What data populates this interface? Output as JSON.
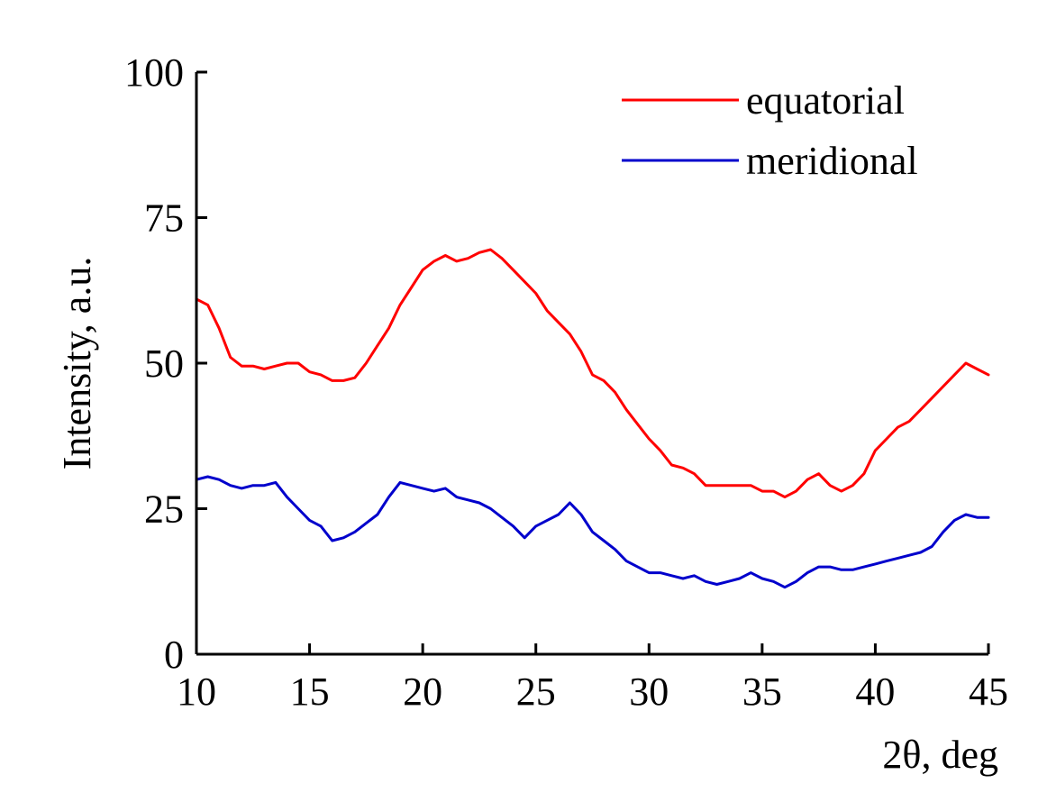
{
  "chart_data": {
    "type": "line",
    "title": "",
    "xlabel": "2θ, deg",
    "ylabel": "Intensity, a.u.",
    "xlim": [
      10,
      45
    ],
    "ylim": [
      0,
      100
    ],
    "x_ticks": [
      10,
      15,
      20,
      25,
      30,
      35,
      40,
      45
    ],
    "y_ticks": [
      0,
      25,
      50,
      75,
      100
    ],
    "grid": false,
    "legend_position": "top-right",
    "series": [
      {
        "name": "equatorial",
        "color": "#ff0000",
        "x": [
          10,
          10.5,
          11,
          11.5,
          12,
          12.5,
          13,
          13.5,
          14,
          14.5,
          15,
          15.5,
          16,
          16.5,
          17,
          17.5,
          18,
          18.5,
          19,
          19.5,
          20,
          20.5,
          21,
          21.5,
          22,
          22.5,
          23,
          23.5,
          24,
          24.5,
          25,
          25.5,
          26,
          26.5,
          27,
          27.5,
          28,
          28.5,
          29,
          29.5,
          30,
          30.5,
          31,
          31.5,
          32,
          32.5,
          33,
          33.5,
          34,
          34.5,
          35,
          35.5,
          36,
          36.5,
          37,
          37.5,
          38,
          38.5,
          39,
          39.5,
          40,
          40.5,
          41,
          41.5,
          42,
          42.5,
          43,
          43.5,
          44,
          44.5,
          45
        ],
        "values": [
          61,
          60,
          56,
          51,
          49.5,
          49.5,
          49,
          49.5,
          50,
          50,
          48.5,
          48,
          47,
          47,
          47.5,
          50,
          53,
          56,
          60,
          63,
          66,
          67.5,
          68.5,
          67.5,
          68,
          69,
          69.5,
          68,
          66,
          64,
          62,
          59,
          57,
          55,
          52,
          48,
          47,
          45,
          42,
          39.5,
          37,
          35,
          32.5,
          32,
          31,
          29,
          29,
          29,
          29,
          29,
          28,
          28,
          27,
          28,
          30,
          31,
          29,
          28,
          29,
          31,
          35,
          37,
          39,
          40,
          42,
          44,
          46,
          48,
          50,
          49,
          48
        ]
      },
      {
        "name": "meridional",
        "color": "#0000cc",
        "x": [
          10,
          10.5,
          11,
          11.5,
          12,
          12.5,
          13,
          13.5,
          14,
          14.5,
          15,
          15.5,
          16,
          16.5,
          17,
          17.5,
          18,
          18.5,
          19,
          19.5,
          20,
          20.5,
          21,
          21.5,
          22,
          22.5,
          23,
          23.5,
          24,
          24.5,
          25,
          25.5,
          26,
          26.5,
          27,
          27.5,
          28,
          28.5,
          29,
          29.5,
          30,
          30.5,
          31,
          31.5,
          32,
          32.5,
          33,
          33.5,
          34,
          34.5,
          35,
          35.5,
          36,
          36.5,
          37,
          37.5,
          38,
          38.5,
          39,
          39.5,
          40,
          40.5,
          41,
          41.5,
          42,
          42.5,
          43,
          43.5,
          44,
          44.5,
          45
        ],
        "values": [
          30,
          30.5,
          30,
          29,
          28.5,
          29,
          29,
          29.5,
          27,
          25,
          23,
          22,
          19.5,
          20,
          21,
          22.5,
          24,
          27,
          29.5,
          29,
          28.5,
          28,
          28.5,
          27,
          26.5,
          26,
          25,
          23.5,
          22,
          20,
          22,
          23,
          24,
          26,
          24,
          21,
          19.5,
          18,
          16,
          15,
          14,
          14,
          13.5,
          13,
          13.5,
          12.5,
          12,
          12.5,
          13,
          14,
          13,
          12.5,
          11.5,
          12.5,
          14,
          15,
          15,
          14.5,
          14.5,
          15,
          15.5,
          16,
          16.5,
          17,
          17.5,
          18.5,
          21,
          23,
          24,
          23.5,
          23.5
        ]
      }
    ]
  }
}
